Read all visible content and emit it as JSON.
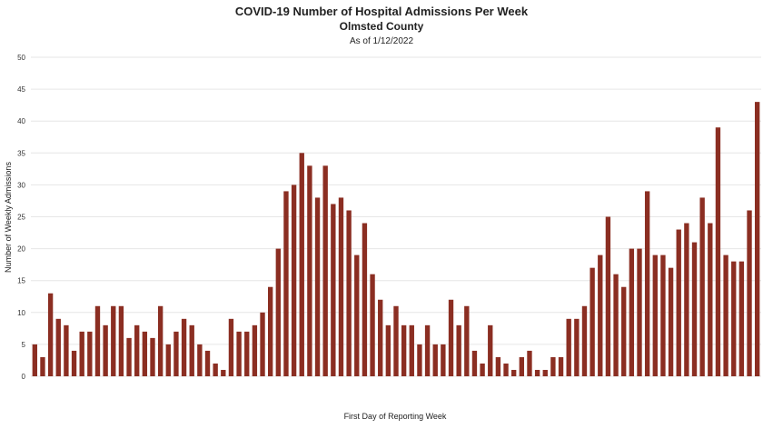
{
  "chart_data": {
    "type": "bar",
    "title": "COVID-19 Number of Hospital Admissions Per Week",
    "subtitle": "Olmsted County",
    "as_of": "As of 1/12/2022",
    "xlabel": "First Day of Reporting Week",
    "ylabel": "Number of Weekly Admissions",
    "ylim": [
      0,
      50
    ],
    "yticks": [
      0,
      5,
      10,
      15,
      20,
      25,
      30,
      35,
      40,
      45,
      50
    ],
    "grid": true,
    "bar_color": "#8b2e22",
    "values": [
      5,
      3,
      13,
      9,
      8,
      4,
      7,
      7,
      11,
      8,
      11,
      11,
      6,
      8,
      7,
      6,
      11,
      5,
      7,
      9,
      8,
      5,
      4,
      2,
      1,
      9,
      7,
      7,
      8,
      10,
      14,
      20,
      29,
      30,
      35,
      33,
      28,
      33,
      27,
      28,
      26,
      19,
      24,
      16,
      12,
      8,
      11,
      8,
      8,
      5,
      8,
      5,
      5,
      12,
      8,
      11,
      4,
      2,
      8,
      3,
      2,
      1,
      3,
      4,
      1,
      1,
      3,
      3,
      9,
      9,
      11,
      17,
      19,
      25,
      16,
      14,
      20,
      20,
      29,
      19,
      19,
      17,
      23,
      24,
      21,
      28,
      24,
      39,
      19,
      18,
      18,
      26,
      43
    ]
  }
}
